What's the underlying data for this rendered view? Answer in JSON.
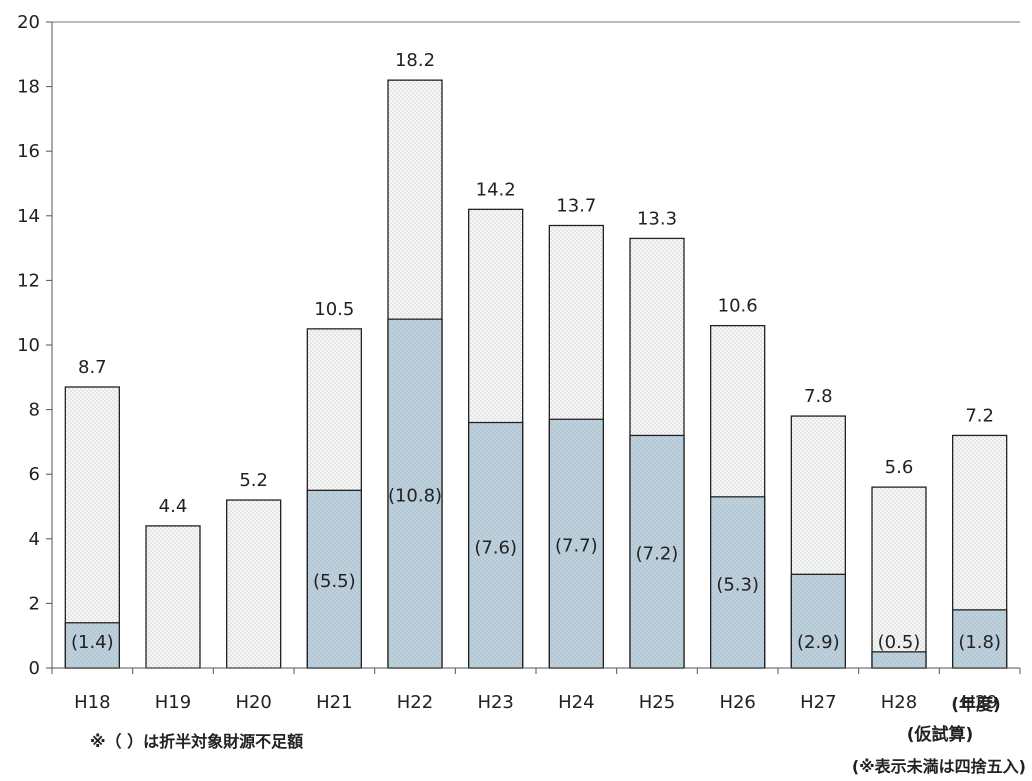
{
  "chart_data": {
    "type": "bar",
    "categories": [
      "H18",
      "H19",
      "H20",
      "H21",
      "H22",
      "H23",
      "H24",
      "H25",
      "H26",
      "H27",
      "H28",
      "H29"
    ],
    "series": [
      {
        "values": [
          8.7,
          4.4,
          5.2,
          10.5,
          18.2,
          14.2,
          13.7,
          13.3,
          10.6,
          7.8,
          5.6,
          7.2
        ]
      },
      {
        "values": [
          1.4,
          null,
          null,
          5.5,
          10.8,
          7.6,
          7.7,
          7.2,
          5.3,
          2.9,
          0.5,
          1.8
        ]
      }
    ],
    "total_labels": [
      "8.7",
      "4.4",
      "5.2",
      "10.5",
      "18.2",
      "14.2",
      "13.7",
      "13.3",
      "10.6",
      "7.8",
      "5.6",
      "7.2"
    ],
    "inner_labels": [
      "(1.4)",
      "",
      "",
      "(5.5)",
      "(10.8)",
      "(7.6)",
      "(7.7)",
      "(7.2)",
      "(5.3)",
      "(2.9)",
      "(0.5)",
      "(1.8)"
    ],
    "ylim": [
      0,
      20
    ],
    "yticks": [
      0,
      2,
      4,
      6,
      8,
      10,
      12,
      14,
      16,
      18,
      20
    ],
    "x_unit_label": "(年度)",
    "last_category_sublabel": "(仮試算)",
    "note_left": "※（ ）は折半対象財源不足額",
    "note_right": "(※表示未満は四捨五入)",
    "colors": {
      "outer_fill": "#f4f5f4",
      "inner_fill": "#bfd1dd",
      "stroke": "#222222"
    }
  }
}
